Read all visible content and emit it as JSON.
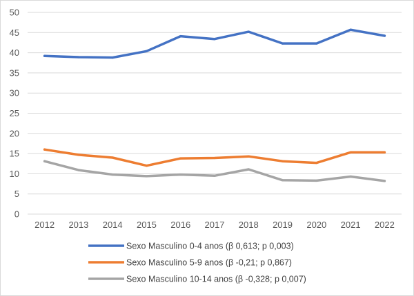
{
  "chart_data": {
    "type": "line",
    "title": "",
    "xlabel": "",
    "ylabel": "",
    "categories": [
      "2012",
      "2013",
      "2014",
      "2015",
      "2016",
      "2017",
      "2018",
      "2019",
      "2020",
      "2021",
      "2022"
    ],
    "ylim": [
      0,
      50
    ],
    "yticks": [
      0,
      5,
      10,
      15,
      20,
      25,
      30,
      35,
      40,
      45,
      50
    ],
    "grid": "horizontal",
    "legend_position": "bottom",
    "series": [
      {
        "name": "Sexo Masculino 0-4 anos (β 0,613; p 0,003)",
        "color": "#4472c4",
        "values": [
          39.2,
          38.9,
          38.8,
          40.4,
          44.1,
          43.4,
          45.2,
          42.3,
          42.3,
          45.7,
          44.2
        ]
      },
      {
        "name": "Sexo Masculino 5-9 anos (β -0,21; p 0,867)",
        "color": "#ed7d31",
        "values": [
          16.0,
          14.7,
          14.0,
          12.0,
          13.8,
          13.9,
          14.3,
          13.1,
          12.7,
          15.3,
          15.3
        ]
      },
      {
        "name": "Sexo Masculino 10-14 anos (β -0,328; p 0,007)",
        "color": "#a5a5a5",
        "values": [
          13.1,
          10.9,
          9.8,
          9.4,
          9.8,
          9.5,
          11.1,
          8.4,
          8.3,
          9.3,
          8.2
        ]
      }
    ]
  }
}
